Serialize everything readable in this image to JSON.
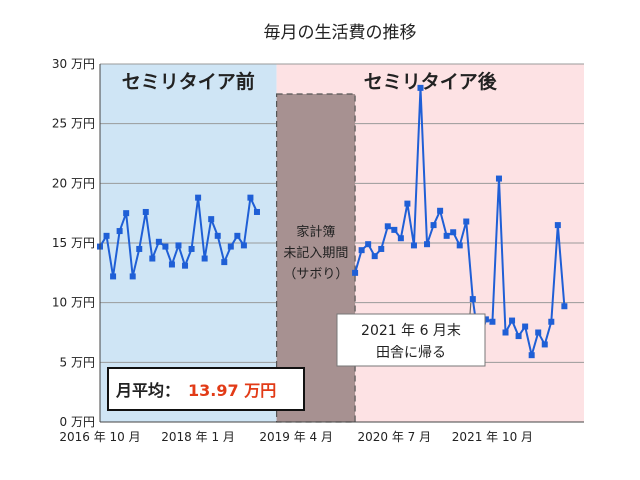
{
  "chart_data": {
    "type": "line",
    "title": "毎月の生活費の推移",
    "y_axis": {
      "ylim": [
        0,
        30
      ],
      "ticks": [
        {
          "value": 0,
          "label": "0 万円"
        },
        {
          "value": 5,
          "label": "5 万円"
        },
        {
          "value": 10,
          "label": "10 万円"
        },
        {
          "value": 15,
          "label": "15 万円"
        },
        {
          "value": 20,
          "label": "20 万円"
        },
        {
          "value": 25,
          "label": "25 万円"
        },
        {
          "value": 30,
          "label": "30 万円"
        }
      ]
    },
    "x_axis": {
      "start": "2016-10",
      "end": "2022-12",
      "tick_labels": [
        {
          "month": "2016-10",
          "label": "2016 年 10 月"
        },
        {
          "month": "2018-01",
          "label": "2018 年 1 月"
        },
        {
          "month": "2019-04",
          "label": "2019 年 4 月"
        },
        {
          "month": "2020-07",
          "label": "2020 年 7 月"
        },
        {
          "month": "2021-10",
          "label": "2021 年 10 月"
        }
      ]
    },
    "grid": true,
    "regions": [
      {
        "label": "セミリタイア前",
        "start": "2016-10",
        "end": "2019-01",
        "color": "#cfe5f5"
      },
      {
        "label": "セミリタイア後",
        "start": "2019-01",
        "end": "2022-12",
        "color": "#fde2e4"
      }
    ],
    "gap": {
      "label": "家計簿\n未記入期間\n（サボり）",
      "start": "2019-01",
      "end": "2020-01",
      "color": "#a79191"
    },
    "annotations": {
      "average": {
        "prefix": "月平均：",
        "value": "13.97 万円"
      },
      "move": {
        "text": "2021 年 6 月末\n田舎に帰る",
        "month": "2021-06"
      }
    },
    "series_color": "#1f5fd6",
    "series": [
      {
        "segment": "before",
        "points": [
          {
            "x": "2016-10",
            "y": 14.7
          },
          {
            "x": "2016-11",
            "y": 15.6
          },
          {
            "x": "2016-12",
            "y": 12.2
          },
          {
            "x": "2017-01",
            "y": 16.0
          },
          {
            "x": "2017-02",
            "y": 17.5
          },
          {
            "x": "2017-03",
            "y": 12.2
          },
          {
            "x": "2017-04",
            "y": 14.5
          },
          {
            "x": "2017-05",
            "y": 17.6
          },
          {
            "x": "2017-06",
            "y": 13.7
          },
          {
            "x": "2017-07",
            "y": 15.1
          },
          {
            "x": "2017-08",
            "y": 14.7
          },
          {
            "x": "2017-09",
            "y": 13.2
          },
          {
            "x": "2017-10",
            "y": 14.8
          },
          {
            "x": "2017-11",
            "y": 13.1
          },
          {
            "x": "2017-12",
            "y": 14.5
          },
          {
            "x": "2018-01",
            "y": 18.8
          },
          {
            "x": "2018-02",
            "y": 13.7
          },
          {
            "x": "2018-03",
            "y": 17.0
          },
          {
            "x": "2018-04",
            "y": 15.6
          },
          {
            "x": "2018-05",
            "y": 13.4
          },
          {
            "x": "2018-06",
            "y": 14.7
          },
          {
            "x": "2018-07",
            "y": 15.6
          },
          {
            "x": "2018-08",
            "y": 14.8
          },
          {
            "x": "2018-09",
            "y": 18.8
          },
          {
            "x": "2018-10",
            "y": 17.6
          }
        ]
      },
      {
        "segment": "after",
        "points": [
          {
            "x": "2020-01",
            "y": 12.5
          },
          {
            "x": "2020-02",
            "y": 14.4
          },
          {
            "x": "2020-03",
            "y": 14.9
          },
          {
            "x": "2020-04",
            "y": 13.9
          },
          {
            "x": "2020-05",
            "y": 14.5
          },
          {
            "x": "2020-06",
            "y": 16.4
          },
          {
            "x": "2020-07",
            "y": 16.1
          },
          {
            "x": "2020-08",
            "y": 15.4
          },
          {
            "x": "2020-09",
            "y": 18.3
          },
          {
            "x": "2020-10",
            "y": 14.8
          },
          {
            "x": "2020-11",
            "y": 28.0
          },
          {
            "x": "2020-12",
            "y": 14.9
          },
          {
            "x": "2021-01",
            "y": 16.5
          },
          {
            "x": "2021-02",
            "y": 17.7
          },
          {
            "x": "2021-03",
            "y": 15.6
          },
          {
            "x": "2021-04",
            "y": 15.9
          },
          {
            "x": "2021-05",
            "y": 14.8
          },
          {
            "x": "2021-06",
            "y": 16.8
          },
          {
            "x": "2021-07",
            "y": 10.3
          },
          {
            "x": "2021-08",
            "y": 6.3
          },
          {
            "x": "2021-09",
            "y": 8.6
          },
          {
            "x": "2021-10",
            "y": 8.4
          },
          {
            "x": "2021-11",
            "y": 20.4
          },
          {
            "x": "2021-12",
            "y": 7.5
          },
          {
            "x": "2022-01",
            "y": 8.5
          },
          {
            "x": "2022-02",
            "y": 7.2
          },
          {
            "x": "2022-03",
            "y": 8.0
          },
          {
            "x": "2022-04",
            "y": 5.6
          },
          {
            "x": "2022-05",
            "y": 7.5
          },
          {
            "x": "2022-06",
            "y": 6.5
          },
          {
            "x": "2022-07",
            "y": 8.4
          },
          {
            "x": "2022-08",
            "y": 16.5
          },
          {
            "x": "2022-09",
            "y": 9.7
          }
        ]
      }
    ]
  }
}
